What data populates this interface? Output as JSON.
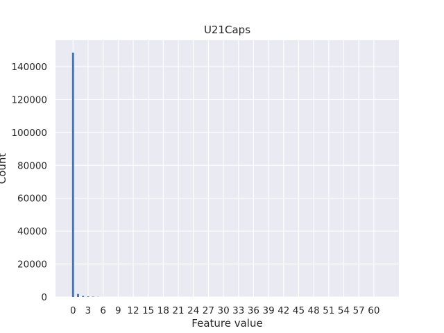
{
  "chart_data": {
    "type": "bar",
    "title": "U21Caps",
    "xlabel": "Feature value",
    "ylabel": "Count",
    "x": [
      0,
      1,
      2,
      3,
      4,
      5
    ],
    "values": [
      148500,
      1800,
      600,
      300,
      150,
      80
    ],
    "xlim": [
      -3.5,
      65
    ],
    "ylim": [
      0,
      156000
    ],
    "xticks": [
      0,
      3,
      6,
      9,
      12,
      15,
      18,
      21,
      24,
      27,
      30,
      33,
      36,
      39,
      42,
      45,
      48,
      51,
      54,
      57,
      60
    ],
    "yticks": [
      0,
      20000,
      40000,
      60000,
      80000,
      100000,
      120000,
      140000
    ],
    "bar_width": 0.4,
    "grid": true,
    "colors": {
      "bar": "#4c72b0",
      "plot_bg": "#eaeaf2",
      "grid": "#ffffff"
    }
  }
}
